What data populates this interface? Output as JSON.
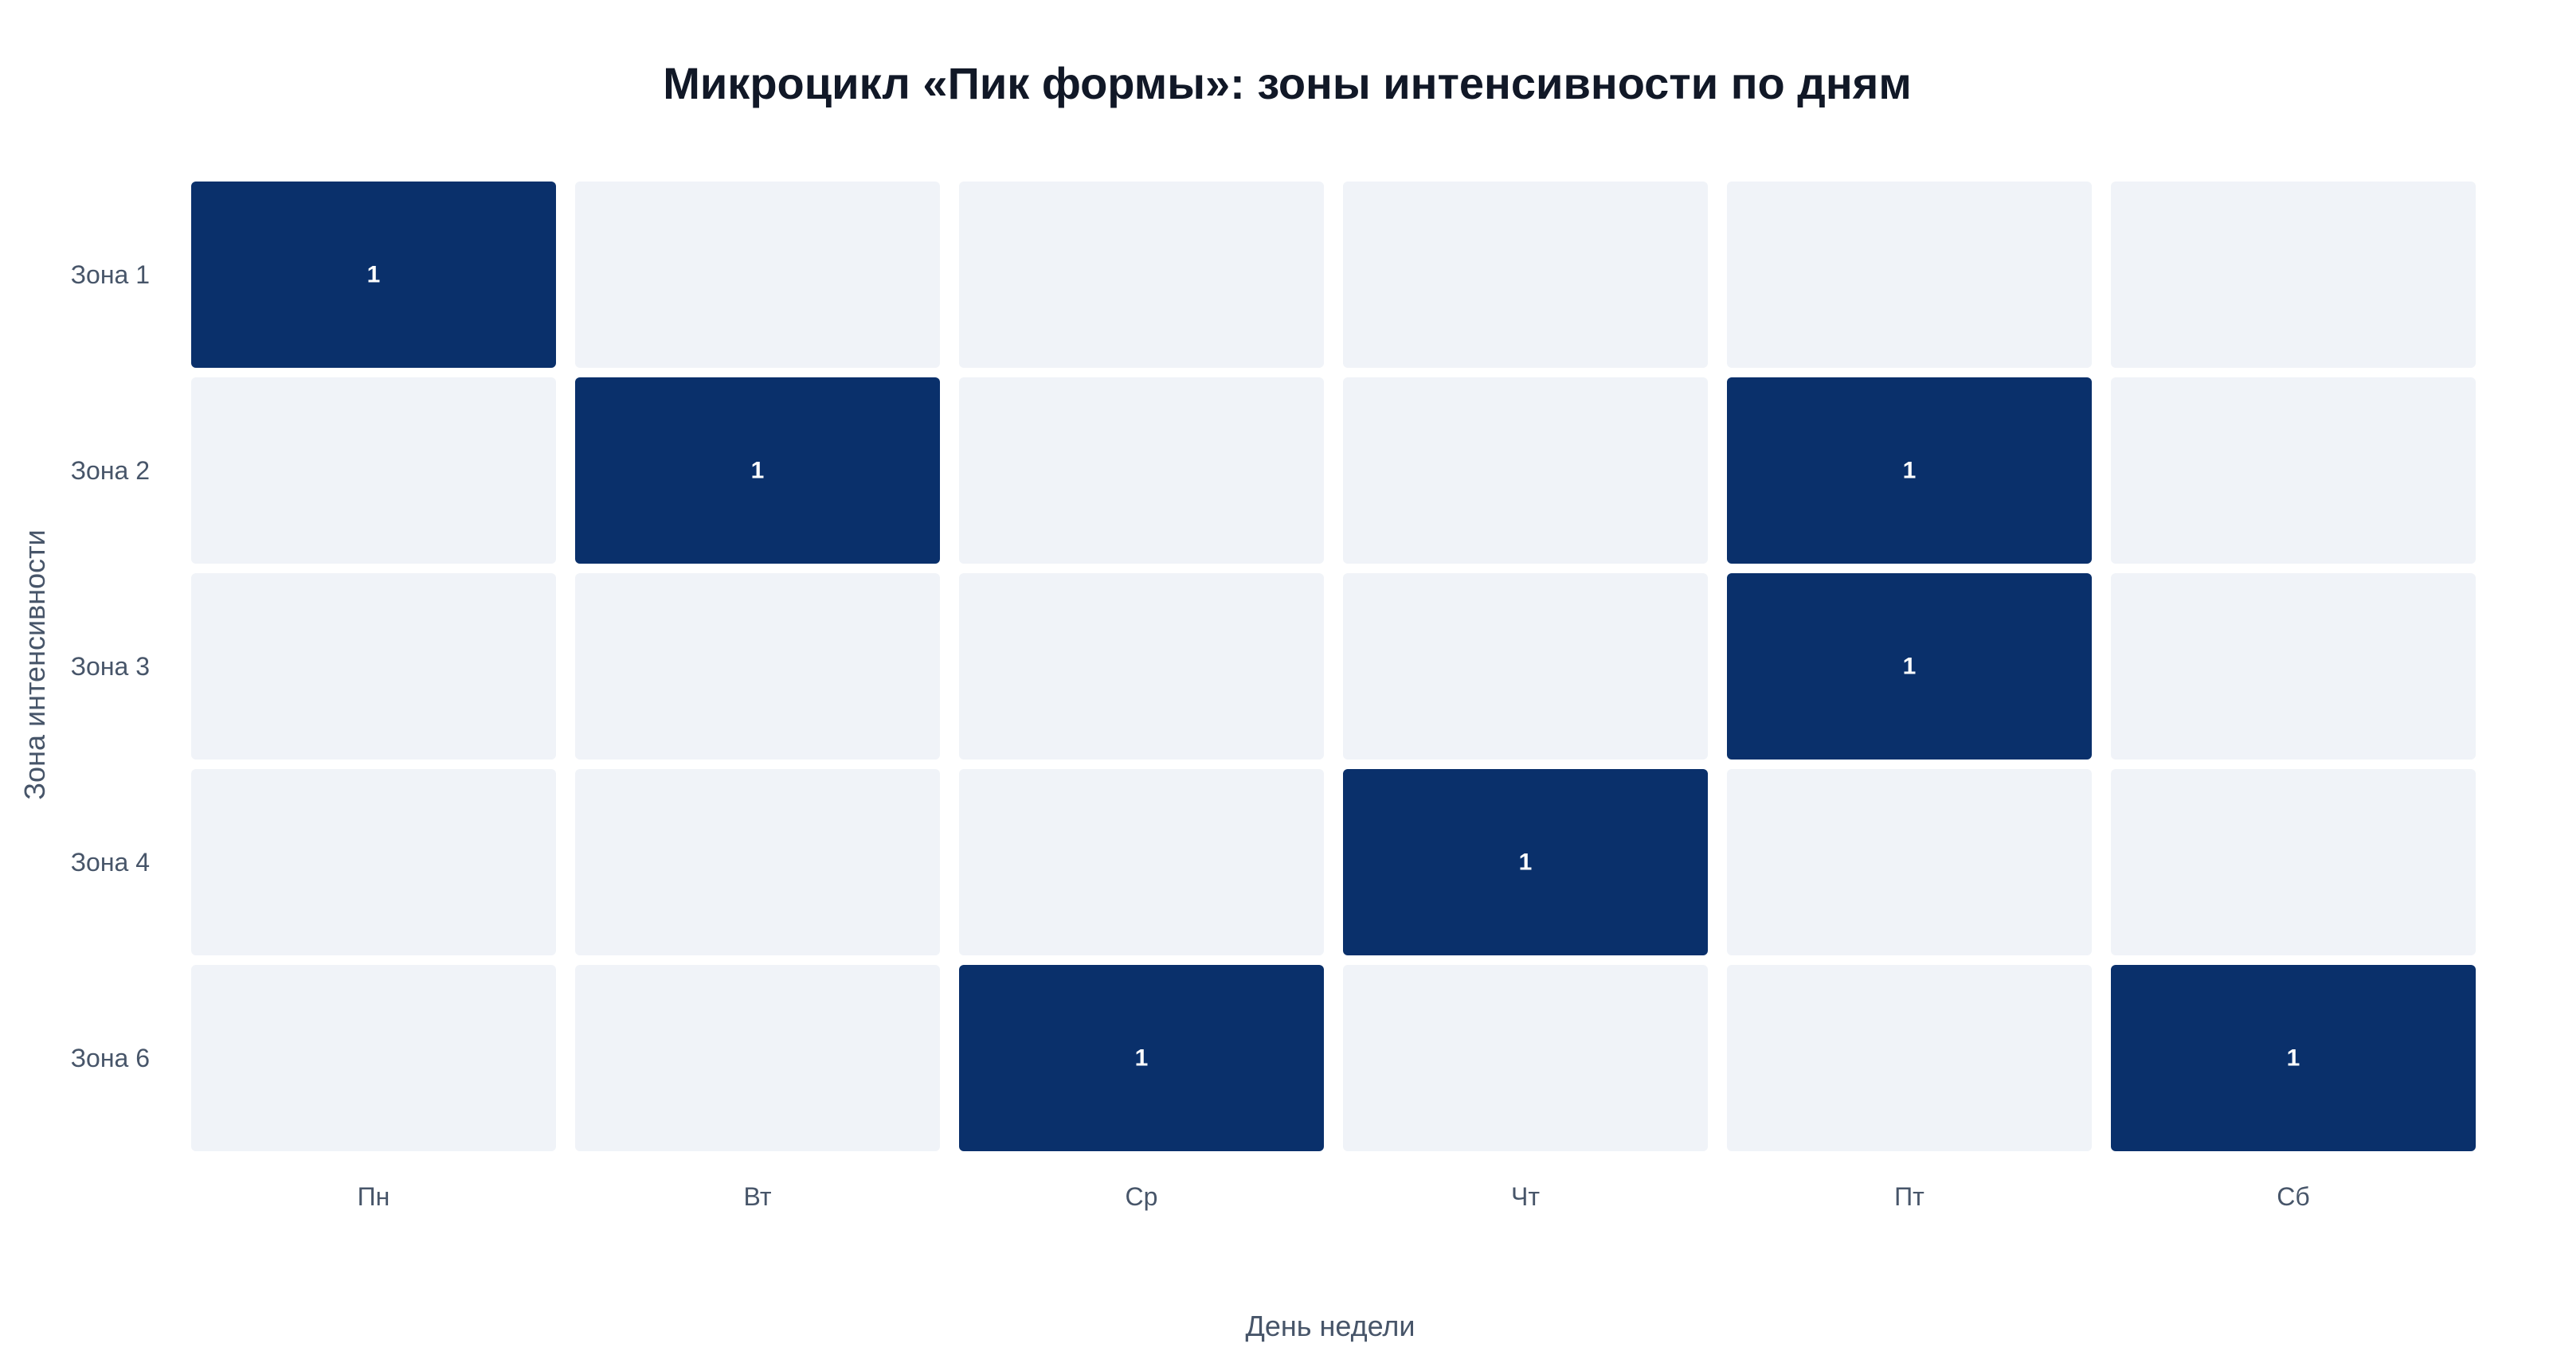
{
  "colors": {
    "empty": "#f0f3f8",
    "filled": "#0a306b",
    "cell_text": "#ffffff",
    "title_text": "#111827",
    "axis_text": "#475569"
  },
  "chart_data": {
    "type": "heatmap",
    "title": "Микроцикл «Пик формы»: зоны интенсивности по дням",
    "xlabel": "День недели",
    "ylabel": "Зона интенсивности",
    "x_categories": [
      "Пн",
      "Вт",
      "Ср",
      "Чт",
      "Пт",
      "Сб"
    ],
    "y_categories": [
      "Зона 1",
      "Зона 2",
      "Зона 3",
      "Зона 4",
      "Зона 6"
    ],
    "values": [
      [
        1,
        0,
        0,
        0,
        0,
        0
      ],
      [
        0,
        1,
        0,
        0,
        1,
        0
      ],
      [
        0,
        0,
        0,
        0,
        1,
        0
      ],
      [
        0,
        0,
        0,
        1,
        0,
        0
      ],
      [
        0,
        0,
        1,
        0,
        0,
        1
      ]
    ],
    "show_cell_labels_for_nonzero": true,
    "legend": "none",
    "grid": false
  }
}
